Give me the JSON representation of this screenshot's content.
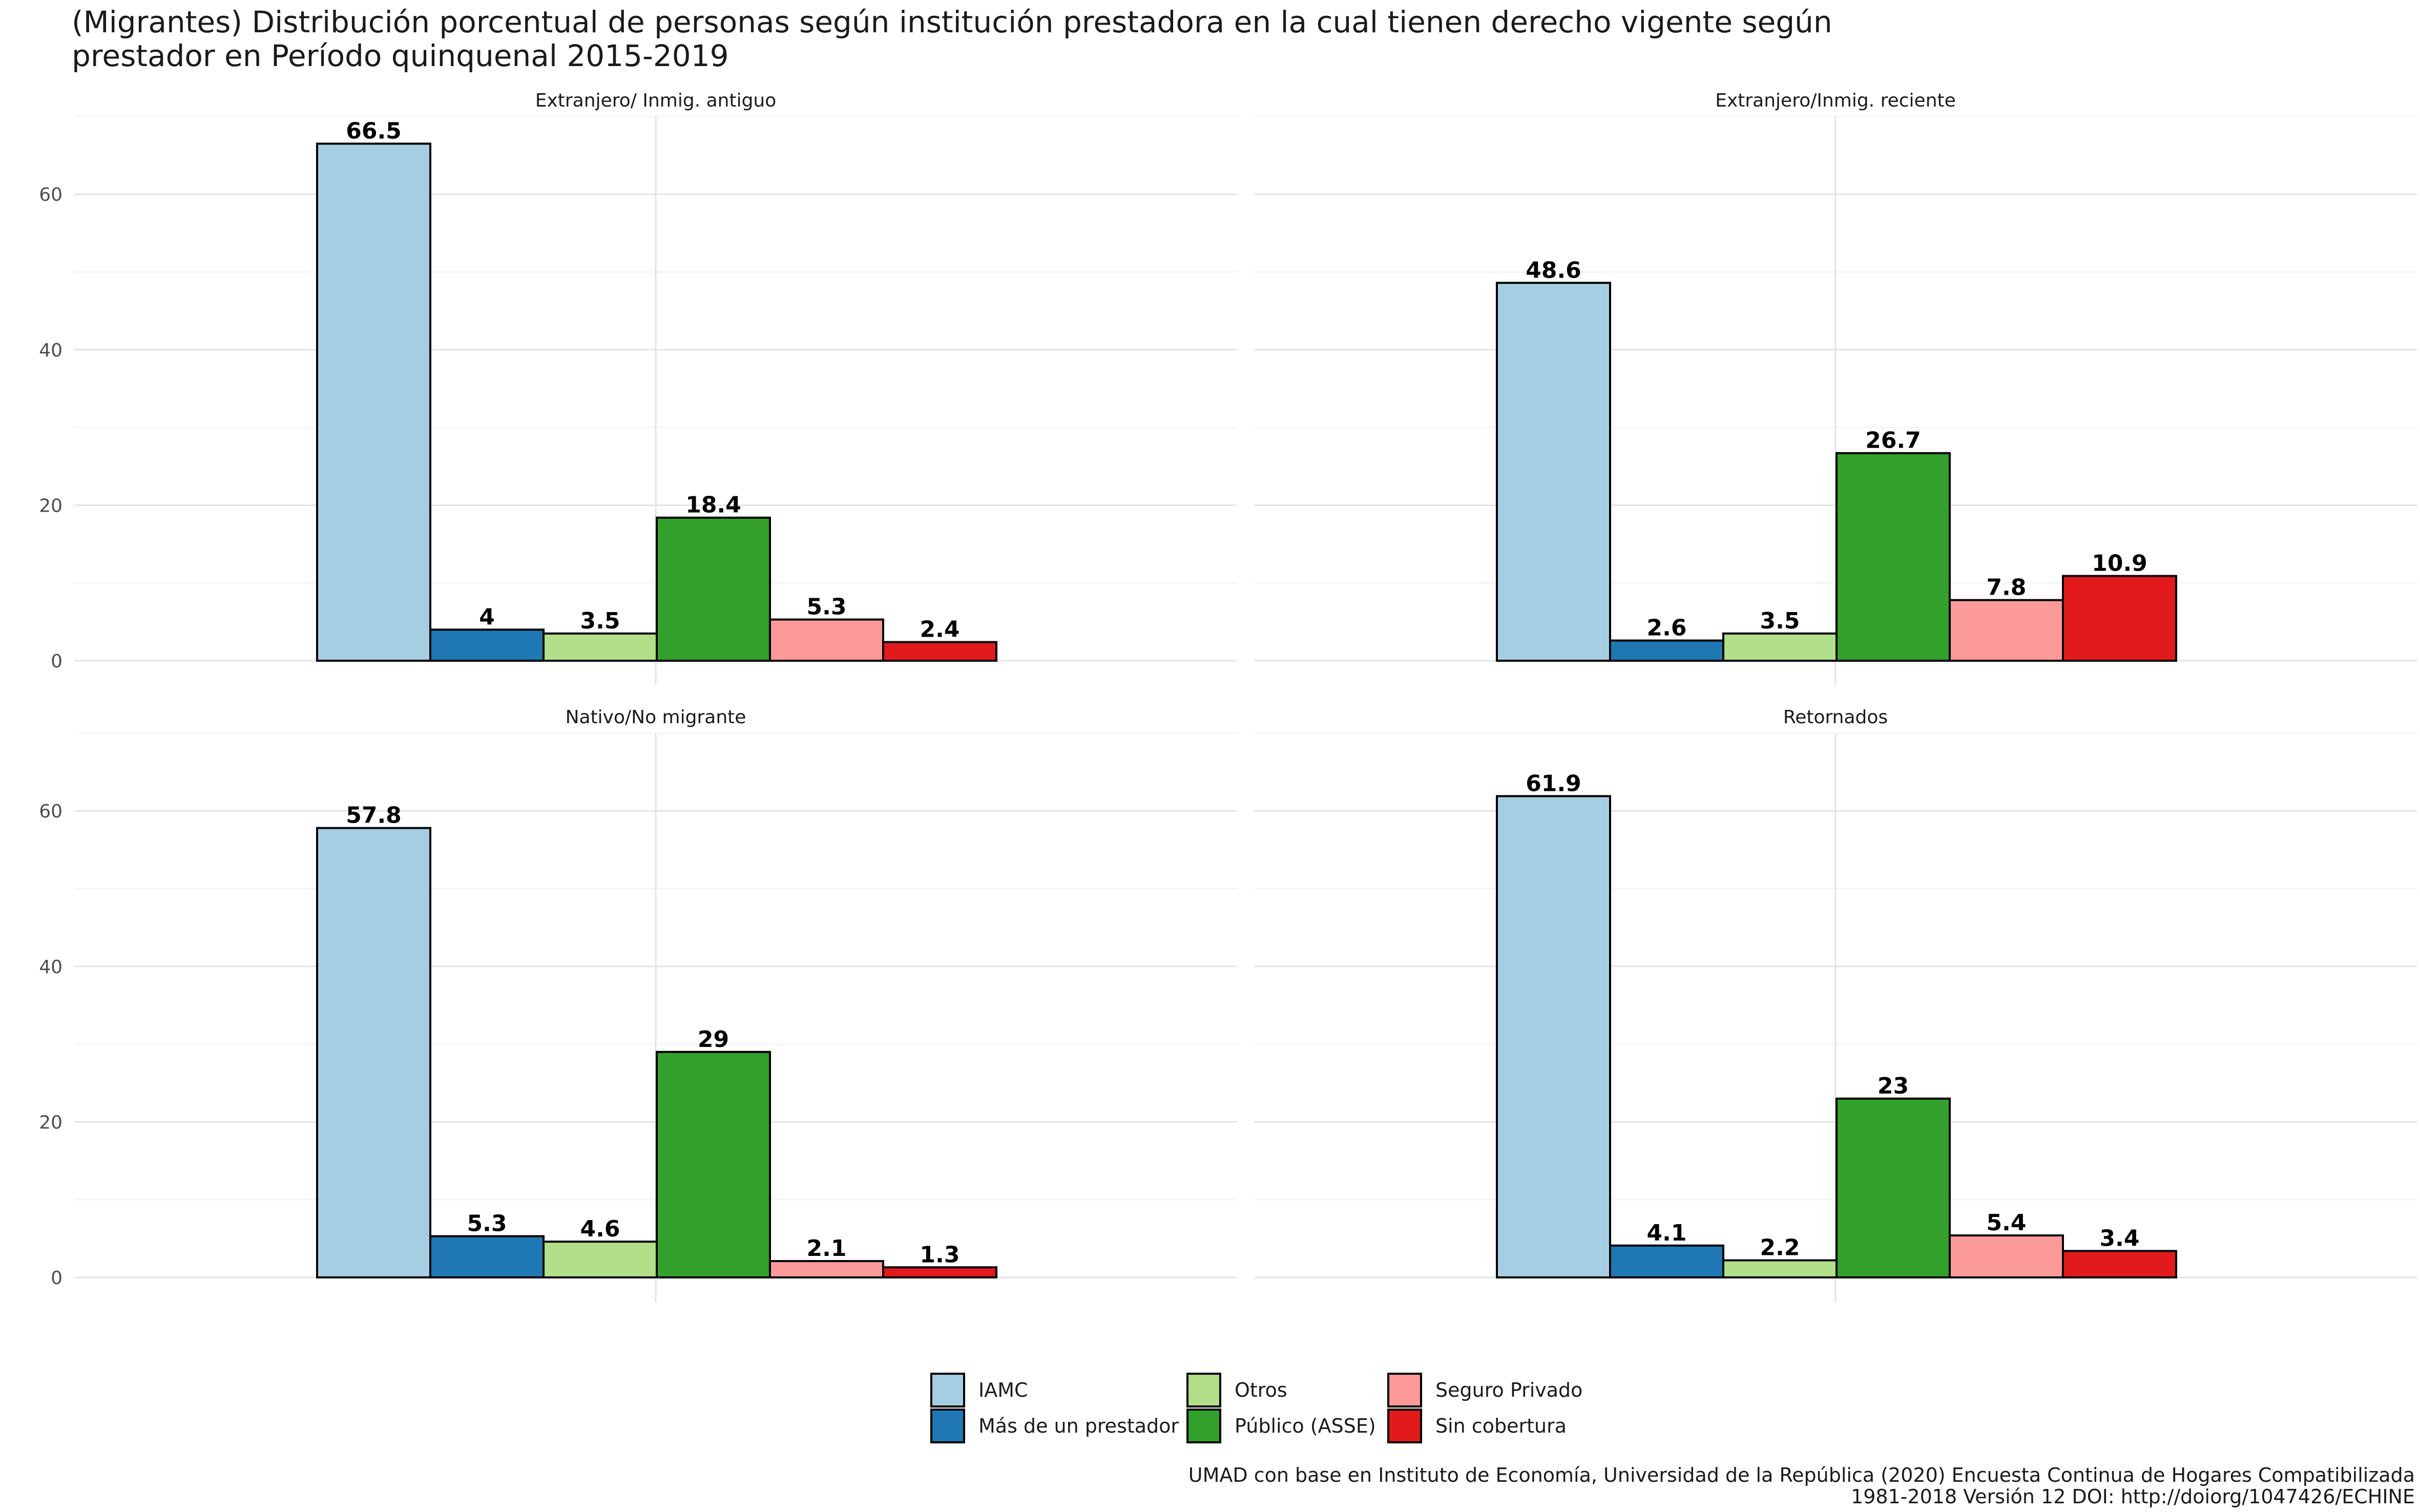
{
  "title": "(Migrantes) Distribución porcentual de personas según institución prestadora en la cual tienen derecho vigente según\n prestador en Período quinquenal 2015-2019",
  "caption_line1": "UMAD con base en Instituto de Economía, Universidad de la República (2020) Encuesta Continua de Hogares Compatibilizada",
  "caption_line2": "1981-2018 Versión 12 DOI: http://doiorg/1047426/ECHINE",
  "chart_data": {
    "type": "bar",
    "facets": [
      {
        "label": "Extranjero/ Inmig. antiguo",
        "values": [
          66.5,
          4,
          3.5,
          18.4,
          5.3,
          2.4
        ]
      },
      {
        "label": "Extranjero/Inmig. reciente",
        "values": [
          48.6,
          2.6,
          3.5,
          26.7,
          7.8,
          10.9
        ]
      },
      {
        "label": "Nativo/No migrante",
        "values": [
          57.8,
          5.3,
          4.6,
          29,
          2.1,
          1.3
        ]
      },
      {
        "label": "Retornados",
        "values": [
          61.9,
          4.1,
          2.2,
          23,
          5.4,
          3.4
        ]
      }
    ],
    "categories": [
      "IAMC",
      "Más de un prestador",
      "Otros",
      "Público (ASSE)",
      "Seguro Privado",
      "Sin cobertura"
    ],
    "colors": [
      "#a6cee3",
      "#1f78b4",
      "#b2df8a",
      "#33a02c",
      "#fb9a99",
      "#e31a1c"
    ],
    "value_labels": [
      [
        "66.5",
        "4",
        "3.5",
        "18.4",
        "5.3",
        "2.4"
      ],
      [
        "48.6",
        "2.6",
        "3.5",
        "26.7",
        "7.8",
        "10.9"
      ],
      [
        "57.8",
        "5.3",
        "4.6",
        "29",
        "2.1",
        "1.3"
      ],
      [
        "61.9",
        "4.1",
        "2.2",
        "23",
        "5.4",
        "3.4"
      ]
    ],
    "ylim": [
      0,
      70
    ],
    "yticks": [
      "0",
      "20",
      "40",
      "60"
    ],
    "legend_position": "bottom",
    "grid": true
  }
}
